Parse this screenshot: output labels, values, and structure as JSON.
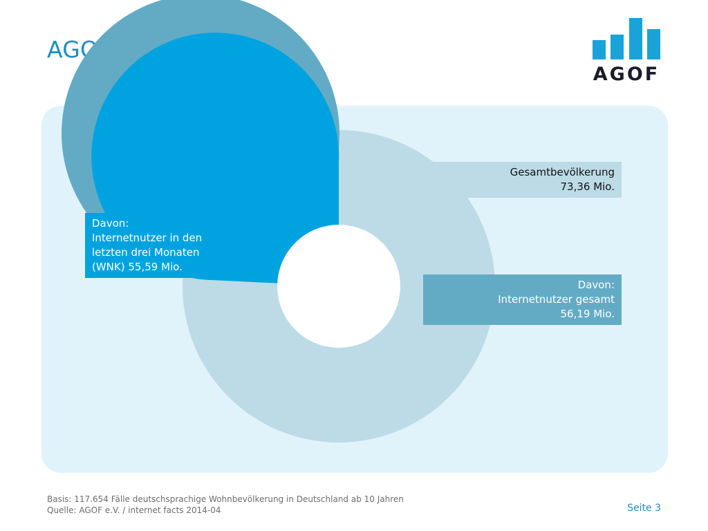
{
  "page": {
    "title": "AGOF Universum",
    "logo_text": "AGOF",
    "page_number": "Seite 3",
    "footer": {
      "basis": "Basis: 117.654 Fälle deutschsprachige Wohnbevölkerung in Deutschland ab 10 Jahren",
      "source": "Quelle: AGOF e.V. / internet facts 2014-04"
    }
  },
  "chart_data": {
    "type": "pie",
    "unit": "Mio.",
    "series": [
      {
        "name": "Gesamtbevölkerung",
        "value": 73.36,
        "label_lines": [
          "Gesamtbevölkerung",
          "73,36 Mio."
        ],
        "color": "#bcdbe7"
      },
      {
        "name": "Internetnutzer gesamt",
        "value": 56.19,
        "label_lines": [
          "Davon:",
          "Internetnutzer gesamt",
          "56,19 Mio."
        ],
        "color": "#63abc5"
      },
      {
        "name": "Internetnutzer in den letzten drei Monaten (WNK)",
        "value": 55.59,
        "label_lines": [
          "Davon:",
          "Internetnutzer in den",
          "letzten drei Monaten",
          "(WNK) 55,59 Mio."
        ],
        "color": "#00a3e0"
      }
    ]
  },
  "colors": {
    "title": "#1a8fc2",
    "panel": "#e0f3fb",
    "logo": "#1aa3d9"
  }
}
